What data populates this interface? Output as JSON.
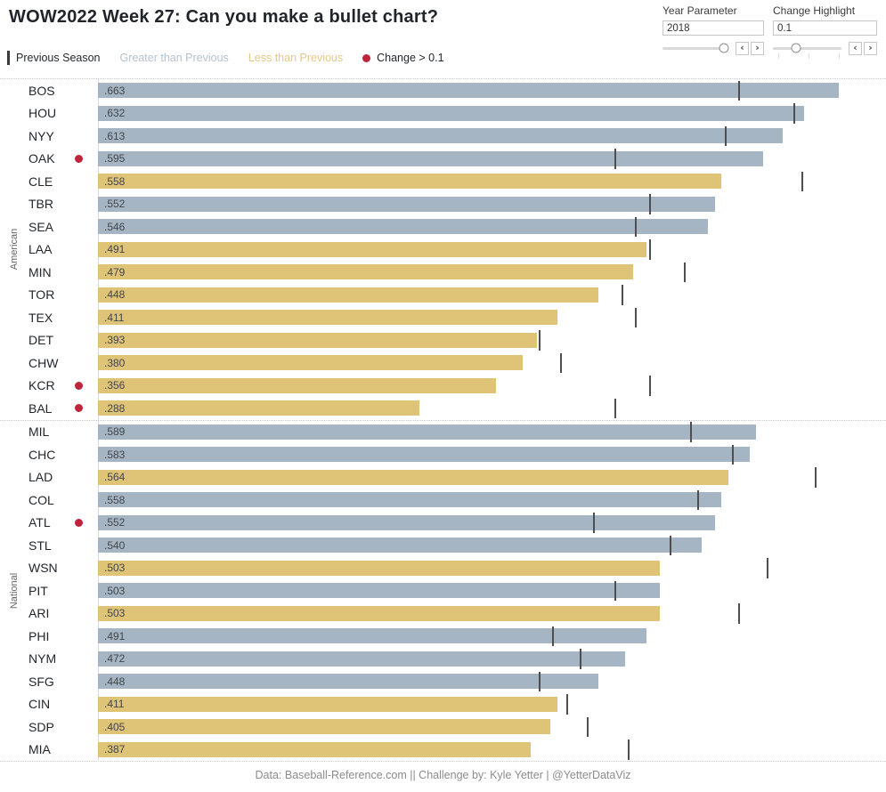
{
  "title": "WOW2022 Week 27: Can you make a bullet chart?",
  "parameters": {
    "year": {
      "label": "Year Parameter",
      "value": "2018",
      "slider_pos": 0.93
    },
    "change": {
      "label": "Change Highlight",
      "value": "0.1",
      "slider_pos": 0.34
    }
  },
  "legend": {
    "previous_season": "Previous Season",
    "greater": "Greater than Previous",
    "less": "Less than Previous",
    "change": "Change > 0.1"
  },
  "footer": "Data: Baseball-Reference.com  ||  Challenge by: Kyle Yetter | @YetterDataViz",
  "colors": {
    "bar_greater": "#a6b5c4",
    "bar_less": "#dfc377",
    "prev_tick": "#4e4e4e",
    "highlight_dot": "#c0233c",
    "legend_greater_text": "#b6c2ce",
    "legend_less_text": "#e4c887",
    "legend_dark_text": "#26292c"
  },
  "chart_data": {
    "type": "bullet",
    "xlim": [
      0,
      0.7
    ],
    "x_units": "win percentage",
    "series_note": "bar = current season W-L%, tick = previous season W-L%, gold bar = less than previous, blue bar = greater than previous, red dot = |change| > 0.1",
    "groups": [
      {
        "label": "American",
        "teams": [
          {
            "code": "BOS",
            "label": ".663",
            "value": 0.663,
            "prev": 0.574,
            "dot": false
          },
          {
            "code": "HOU",
            "label": ".632",
            "value": 0.632,
            "prev": 0.623,
            "dot": false
          },
          {
            "code": "NYY",
            "label": ".613",
            "value": 0.613,
            "prev": 0.562,
            "dot": false
          },
          {
            "code": "OAK",
            "label": ".595",
            "value": 0.595,
            "prev": 0.463,
            "dot": true
          },
          {
            "code": "CLE",
            "label": ".558",
            "value": 0.558,
            "prev": 0.63,
            "dot": false
          },
          {
            "code": "TBR",
            "label": ".552",
            "value": 0.552,
            "prev": 0.494,
            "dot": false
          },
          {
            "code": "SEA",
            "label": ".546",
            "value": 0.546,
            "prev": 0.481,
            "dot": false
          },
          {
            "code": "LAA",
            "label": ".491",
            "value": 0.491,
            "prev": 0.494,
            "dot": false
          },
          {
            "code": "MIN",
            "label": ".479",
            "value": 0.479,
            "prev": 0.525,
            "dot": false
          },
          {
            "code": "TOR",
            "label": ".448",
            "value": 0.448,
            "prev": 0.469,
            "dot": false
          },
          {
            "code": "TEX",
            "label": ".411",
            "value": 0.411,
            "prev": 0.481,
            "dot": false
          },
          {
            "code": "DET",
            "label": ".393",
            "value": 0.393,
            "prev": 0.395,
            "dot": false
          },
          {
            "code": "CHW",
            "label": ".380",
            "value": 0.38,
            "prev": 0.414,
            "dot": false
          },
          {
            "code": "KCR",
            "label": ".356",
            "value": 0.356,
            "prev": 0.494,
            "dot": true
          },
          {
            "code": "BAL",
            "label": ".288",
            "value": 0.288,
            "prev": 0.463,
            "dot": true
          }
        ]
      },
      {
        "label": "National",
        "teams": [
          {
            "code": "MIL",
            "label": ".589",
            "value": 0.589,
            "prev": 0.531,
            "dot": false
          },
          {
            "code": "CHC",
            "label": ".583",
            "value": 0.583,
            "prev": 0.568,
            "dot": false
          },
          {
            "code": "LAD",
            "label": ".564",
            "value": 0.564,
            "prev": 0.642,
            "dot": false
          },
          {
            "code": "COL",
            "label": ".558",
            "value": 0.558,
            "prev": 0.537,
            "dot": false
          },
          {
            "code": "ATL",
            "label": ".552",
            "value": 0.552,
            "prev": 0.444,
            "dot": true
          },
          {
            "code": "STL",
            "label": ".540",
            "value": 0.54,
            "prev": 0.512,
            "dot": false
          },
          {
            "code": "WSN",
            "label": ".503",
            "value": 0.503,
            "prev": 0.599,
            "dot": false
          },
          {
            "code": "PIT",
            "label": ".503",
            "value": 0.503,
            "prev": 0.463,
            "dot": false
          },
          {
            "code": "ARI",
            "label": ".503",
            "value": 0.503,
            "prev": 0.574,
            "dot": false
          },
          {
            "code": "PHI",
            "label": ".491",
            "value": 0.491,
            "prev": 0.407,
            "dot": false
          },
          {
            "code": "NYM",
            "label": ".472",
            "value": 0.472,
            "prev": 0.432,
            "dot": false
          },
          {
            "code": "SFG",
            "label": ".448",
            "value": 0.448,
            "prev": 0.395,
            "dot": false
          },
          {
            "code": "CIN",
            "label": ".411",
            "value": 0.411,
            "prev": 0.42,
            "dot": false
          },
          {
            "code": "SDP",
            "label": ".405",
            "value": 0.405,
            "prev": 0.438,
            "dot": false
          },
          {
            "code": "MIA",
            "label": ".387",
            "value": 0.387,
            "prev": 0.475,
            "dot": false
          }
        ]
      }
    ]
  }
}
